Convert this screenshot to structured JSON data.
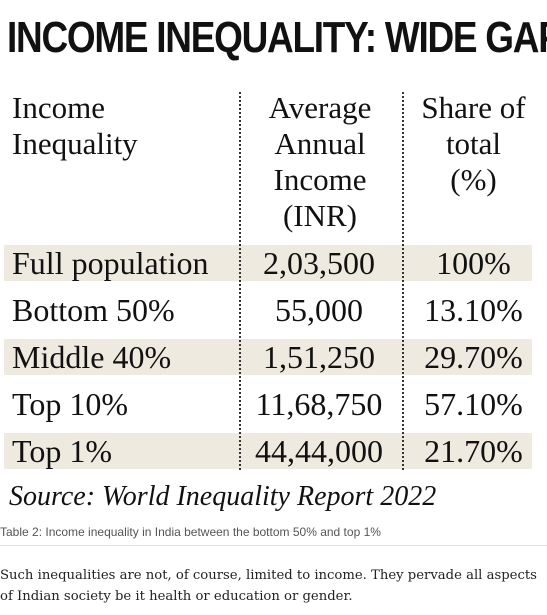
{
  "figure": {
    "title": "INCOME INEQUALITY: WIDE GAP",
    "headers": [
      [
        "Income",
        "Inequality"
      ],
      [
        "Average",
        "Annual",
        "Income",
        "(INR)"
      ],
      [
        "Share of",
        "total",
        "(%)"
      ]
    ],
    "rows": [
      {
        "group": "Full population",
        "income": "2,03,500",
        "share": "100%",
        "shaded": true
      },
      {
        "group": "Bottom 50%",
        "income": "55,000",
        "share": "13.10%",
        "shaded": false
      },
      {
        "group": "Middle 40%",
        "income": "1,51,250",
        "share": "29.70%",
        "shaded": true
      },
      {
        "group": "Top 10%",
        "income": "11,68,750",
        "share": "57.10%",
        "shaded": false
      },
      {
        "group": "Top 1%",
        "income": "44,44,000",
        "share": "21.70%",
        "shaded": true
      }
    ],
    "source": "Source: World Inequality Report 2022"
  },
  "caption": "Table 2: Income inequality in India between the bottom 50% and top 1%",
  "paragraph": "Such inequalities are not, of course, limited to income. They pervade all aspects of Indian society be it health or education or gender.",
  "colors": {
    "row_shade": "#efeae0",
    "text": "#111111",
    "caption": "#555555"
  }
}
